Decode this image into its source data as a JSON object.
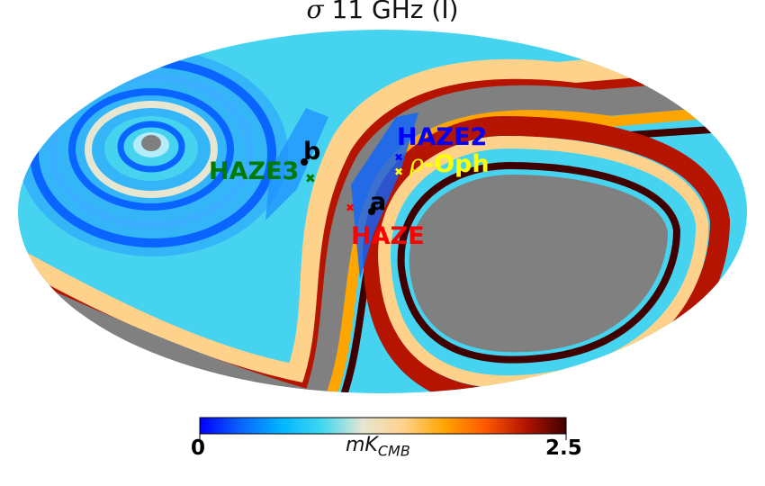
{
  "title": {
    "symbol": "σ",
    "text": "11 GHz (I)"
  },
  "colorbar": {
    "min_label": "0",
    "max_label": "2.5",
    "unit_main": "mK",
    "unit_sub": "CMB",
    "colors": [
      "#0000ff",
      "#0a64ff",
      "#00b4ff",
      "#40d8f0",
      "#e6e6d2",
      "#ffd28c",
      "#ffa500",
      "#ff5a00",
      "#b41400",
      "#400000"
    ]
  },
  "colors": {
    "background_sky": "#45d3f0",
    "masked": "#808080"
  },
  "labels": [
    {
      "key": "haze2",
      "text": "HAZE2",
      "color": "#0000ff"
    },
    {
      "key": "rho-oph",
      "prefix": "ρ",
      "text": "-Oph",
      "color": "#ffff00"
    },
    {
      "key": "haze3",
      "text": "HAZE3",
      "color": "#007a00"
    },
    {
      "key": "haze",
      "text": "HAZE",
      "color": "#ff0000"
    },
    {
      "key": "point-a",
      "text": "a",
      "color": "#000000"
    },
    {
      "key": "point-b",
      "text": "b",
      "color": "#000000"
    }
  ]
}
